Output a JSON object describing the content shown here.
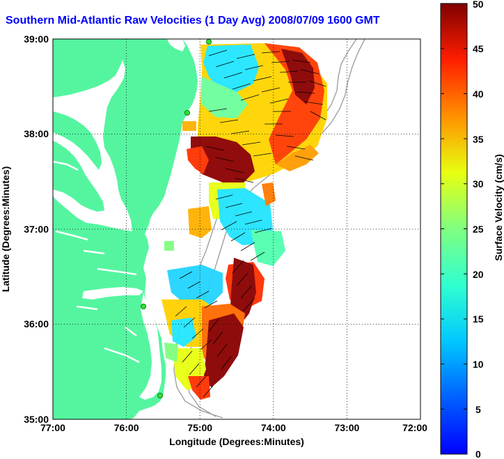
{
  "title": "Southern Mid-Atlantic Raw Velocities (1 Day Avg) 2008/07/09 1600 GMT",
  "map": {
    "xlabel": "Longitude (Degrees:Minutes)",
    "ylabel": "Latitude (Degrees:Minutes)",
    "x_ticks": [
      "77:00",
      "76:00",
      "75:00",
      "74:00",
      "73:00",
      "72:00"
    ],
    "y_ticks": [
      "39:00",
      "38:00",
      "37:00",
      "36:00",
      "35:00"
    ],
    "land_color": "#55f5a0",
    "grid": "dotted"
  },
  "colorbar": {
    "label": "Surface Velocity (cm/s)",
    "ticks": [
      "50",
      "45",
      "40",
      "35",
      "30",
      "25",
      "20",
      "15",
      "10",
      "5",
      "0"
    ],
    "range": [
      0,
      50
    ],
    "colormap": "jet"
  }
}
